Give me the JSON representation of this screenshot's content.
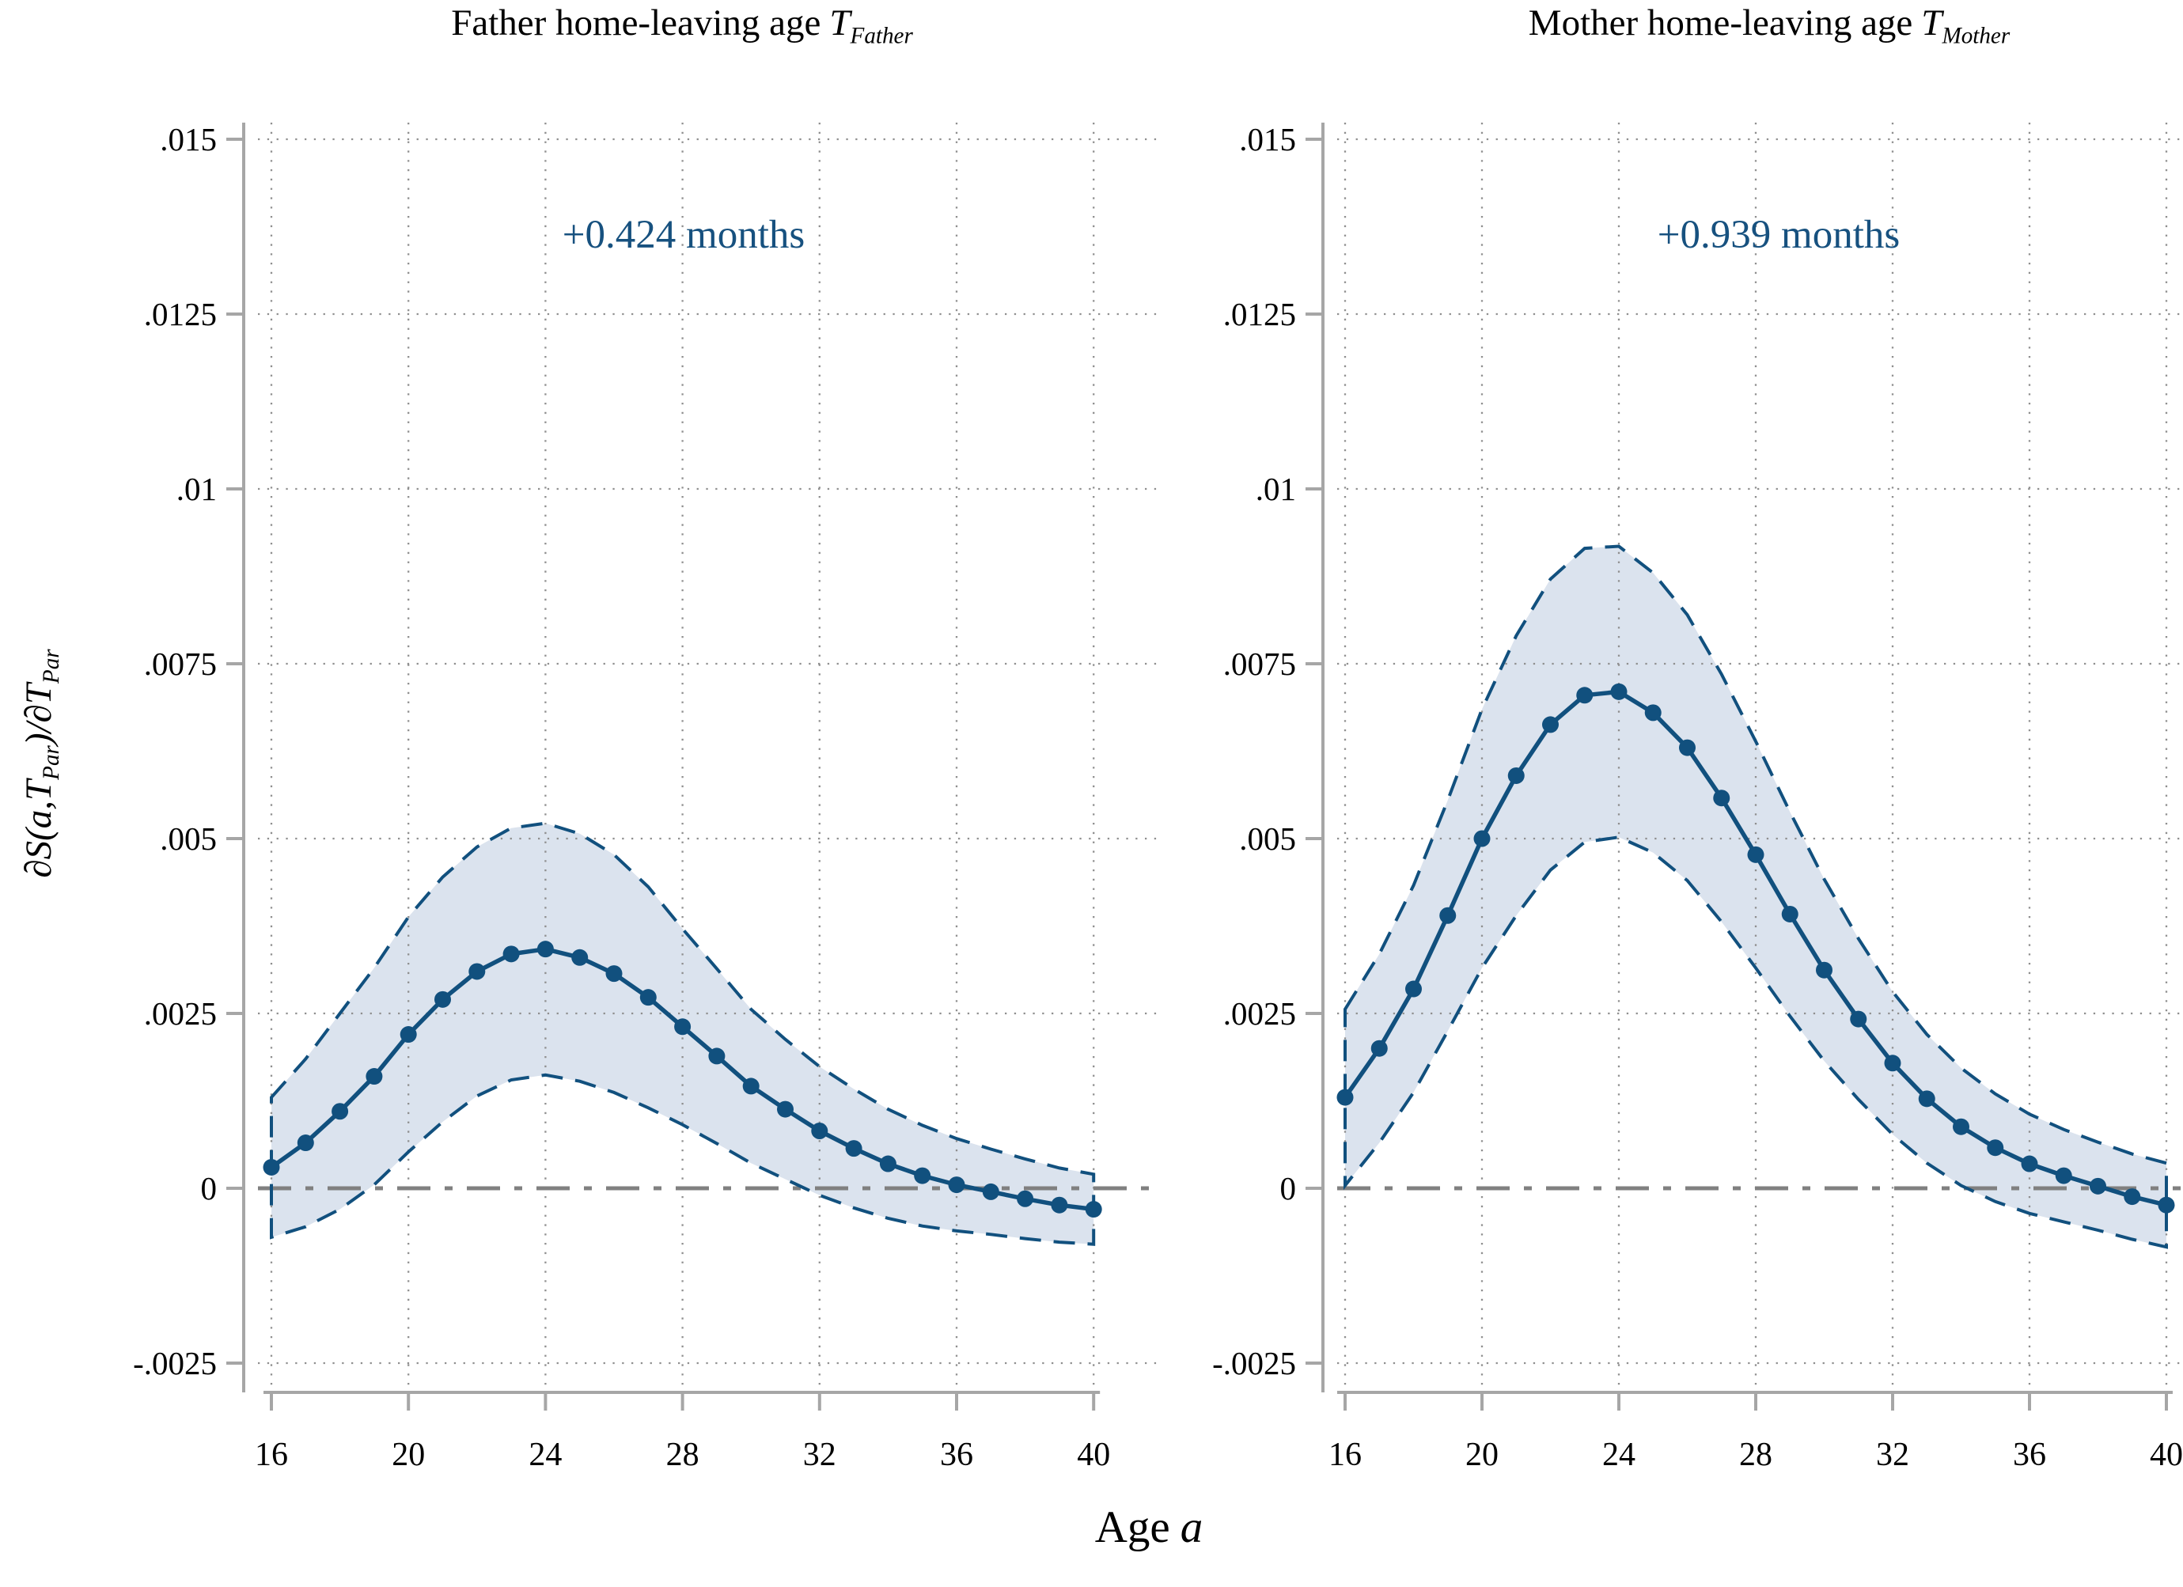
{
  "figure": {
    "xlabel_main": "Age",
    "xlabel_var": "a",
    "ylabel_p1": "∂S(a,T",
    "ylabel_sub1": "Par",
    "ylabel_p2": ")/∂T",
    "ylabel_sub2": "Par",
    "colors": {
      "line": "#11507E",
      "band_fill": "#DBE3EE",
      "annotation_text": "#17517F",
      "zero_line": "#808080",
      "gridline": "#8F8F8F",
      "axis": "#A6A6A6",
      "text": "#000000"
    }
  },
  "chart_data": [
    {
      "type": "line",
      "title_main": "Father home-leaving age",
      "title_var": "T",
      "title_sub": "Father",
      "annotation": "+0.424 months",
      "xlabel": "Age a",
      "ylabel": "dS(a,T_Par)/dT_Par",
      "legend": "none",
      "grid": true,
      "xlim": [
        16,
        40
      ],
      "ylim": [
        -0.0025,
        0.015
      ],
      "xticks": [
        16,
        20,
        24,
        28,
        32,
        36,
        40
      ],
      "yticks": [
        -0.0025,
        0,
        0.0025,
        0.005,
        0.0075,
        0.01,
        0.0125,
        0.015
      ],
      "ytick_labels": [
        "-.0025",
        "0",
        ".0025",
        ".005",
        ".0075",
        ".01",
        ".0125",
        ".015"
      ],
      "x": [
        16,
        17,
        18,
        19,
        20,
        21,
        22,
        23,
        24,
        25,
        26,
        27,
        28,
        29,
        30,
        31,
        32,
        33,
        34,
        35,
        36,
        37,
        38,
        39,
        40
      ],
      "series": [
        {
          "name": "marginal-effect",
          "values": [
            0.0003,
            0.00065,
            0.0011,
            0.0016,
            0.0022,
            0.0027,
            0.0031,
            0.00335,
            0.00342,
            0.0033,
            0.00307,
            0.00273,
            0.00231,
            0.00189,
            0.00146,
            0.00113,
            0.00082,
            0.00057,
            0.00035,
            0.00018,
            5e-05,
            -5e-05,
            -0.00015,
            -0.00024,
            -0.0003
          ]
        },
        {
          "name": "ci-upper",
          "values": [
            0.0013,
            0.00185,
            0.0025,
            0.00315,
            0.00388,
            0.00445,
            0.00488,
            0.00515,
            0.00522,
            0.00507,
            0.00477,
            0.00431,
            0.00371,
            0.00314,
            0.00256,
            0.00213,
            0.00174,
            0.00142,
            0.00113,
            0.0009,
            0.00071,
            0.00056,
            0.00042,
            0.00029,
            0.0002
          ]
        },
        {
          "name": "ci-lower",
          "values": [
            -0.0007,
            -0.00055,
            -0.0003,
            5e-05,
            0.00052,
            0.00095,
            0.00132,
            0.00155,
            0.00162,
            0.00153,
            0.00137,
            0.00115,
            0.00091,
            0.00064,
            0.00036,
            0.00013,
            -0.0001,
            -0.00028,
            -0.00043,
            -0.00054,
            -0.00061,
            -0.00066,
            -0.00072,
            -0.00077,
            -0.0008
          ]
        }
      ]
    },
    {
      "type": "line",
      "title_main": "Mother home-leaving age",
      "title_var": "T",
      "title_sub": "Mother",
      "annotation": "+0.939 months",
      "xlabel": "Age a",
      "ylabel": "dS(a,T_Par)/dT_Par",
      "legend": "none",
      "grid": true,
      "xlim": [
        16,
        40
      ],
      "ylim": [
        -0.0025,
        0.015
      ],
      "xticks": [
        16,
        20,
        24,
        28,
        32,
        36,
        40
      ],
      "yticks": [
        -0.0025,
        0,
        0.0025,
        0.005,
        0.0075,
        0.01,
        0.0125,
        0.015
      ],
      "ytick_labels": [
        "-.0025",
        "0",
        ".0025",
        ".005",
        ".0075",
        ".01",
        ".0125",
        ".015"
      ],
      "x": [
        16,
        17,
        18,
        19,
        20,
        21,
        22,
        23,
        24,
        25,
        26,
        27,
        28,
        29,
        30,
        31,
        32,
        33,
        34,
        35,
        36,
        37,
        38,
        39,
        40
      ],
      "series": [
        {
          "name": "marginal-effect",
          "values": [
            0.0013,
            0.002,
            0.00285,
            0.0039,
            0.005,
            0.0059,
            0.00663,
            0.00705,
            0.0071,
            0.0068,
            0.0063,
            0.00558,
            0.00477,
            0.00392,
            0.00312,
            0.00242,
            0.00179,
            0.00128,
            0.00088,
            0.00058,
            0.00035,
            0.00018,
            3e-05,
            -0.00012,
            -0.00024
          ]
        },
        {
          "name": "ci-upper",
          "values": [
            0.00256,
            0.00335,
            0.00433,
            0.00555,
            0.00685,
            0.0079,
            0.00871,
            0.00915,
            0.00918,
            0.0088,
            0.0082,
            0.00735,
            0.00639,
            0.00538,
            0.00442,
            0.00357,
            0.00281,
            0.0022,
            0.00172,
            0.00135,
            0.00106,
            0.00084,
            0.00066,
            0.00049,
            0.00036
          ]
        },
        {
          "name": "ci-lower",
          "values": [
            4e-05,
            0.00065,
            0.00137,
            0.00225,
            0.00315,
            0.0039,
            0.00455,
            0.00495,
            0.00502,
            0.0048,
            0.0044,
            0.00381,
            0.00315,
            0.00246,
            0.00182,
            0.00127,
            0.00077,
            0.00036,
            4e-05,
            -0.00019,
            -0.00036,
            -0.00048,
            -0.0006,
            -0.00073,
            -0.00084
          ]
        }
      ]
    }
  ]
}
